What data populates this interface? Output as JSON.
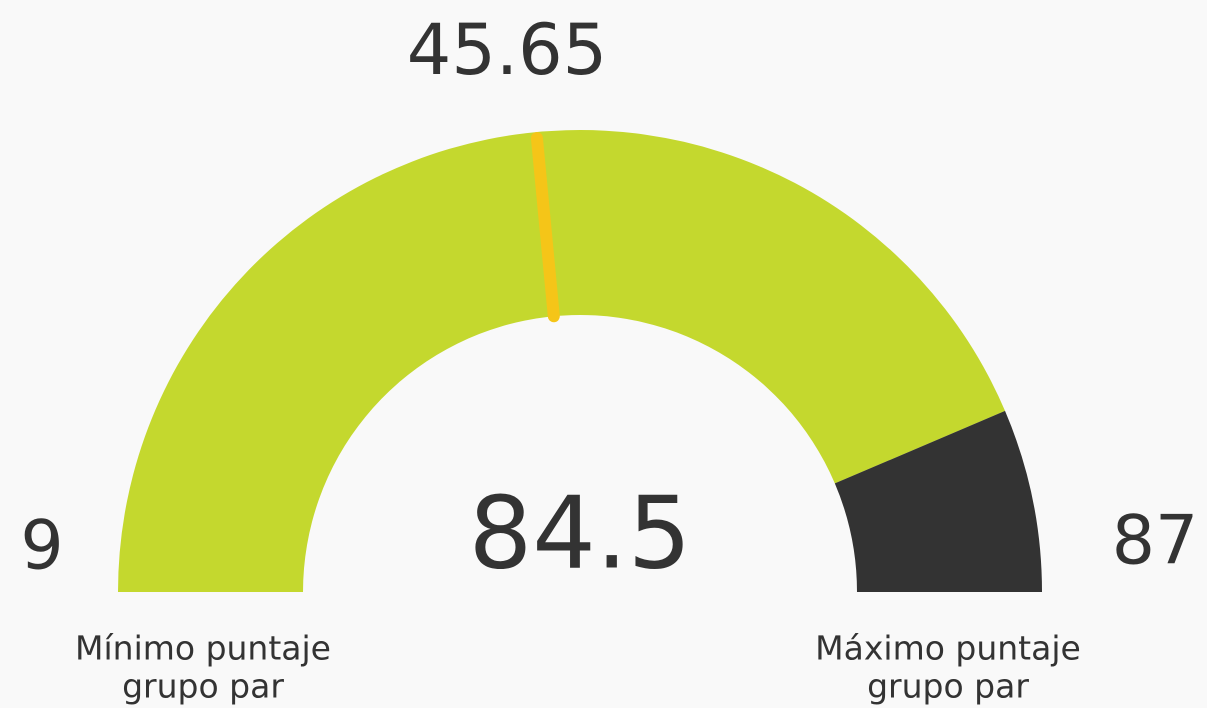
{
  "chart_data": {
    "type": "gauge",
    "value": 84.5,
    "min": 9,
    "max": 87,
    "arc_value": 77,
    "marker": 45.65,
    "min_label": [
      "Mínimo puntaje",
      "grupo par"
    ],
    "max_label": [
      "Máximo puntaje",
      "grupo par"
    ],
    "fill_color": "#c4d82e",
    "rest_color": "#333333",
    "marker_color": "#f5c518"
  }
}
